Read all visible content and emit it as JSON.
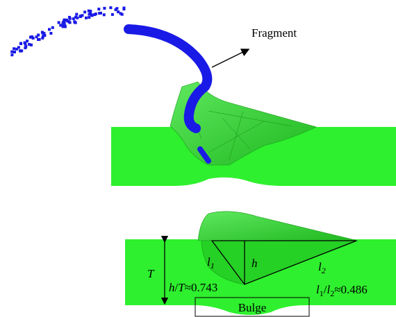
{
  "labels": {
    "fragment": "Fragment",
    "thickness": "T",
    "height": "h",
    "l1": {
      "base": "l",
      "sub": "1"
    },
    "l2": {
      "base": "l",
      "sub": "2"
    },
    "ratio_h_t": [
      "h",
      "/",
      "T",
      "≈0.743"
    ],
    "ratio_l1_l2": [
      "l",
      "1",
      "/",
      "l",
      "2",
      "≈0.486"
    ],
    "bulge": "Bulge"
  }
}
